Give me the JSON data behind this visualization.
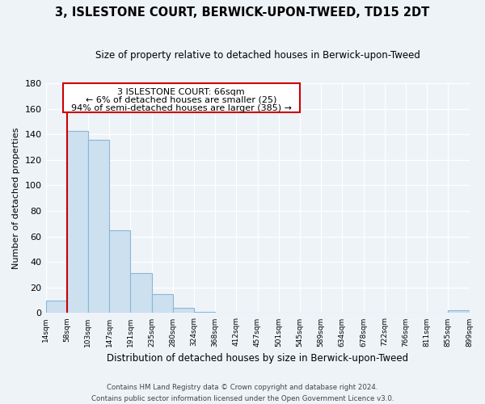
{
  "title": "3, ISLESTONE COURT, BERWICK-UPON-TWEED, TD15 2DT",
  "subtitle": "Size of property relative to detached houses in Berwick-upon-Tweed",
  "bar_values": [
    10,
    143,
    136,
    65,
    31,
    15,
    4,
    1,
    0,
    0,
    0,
    0,
    0,
    0,
    0,
    0,
    0,
    0,
    0,
    2
  ],
  "x_labels": [
    "14sqm",
    "58sqm",
    "103sqm",
    "147sqm",
    "191sqm",
    "235sqm",
    "280sqm",
    "324sqm",
    "368sqm",
    "412sqm",
    "457sqm",
    "501sqm",
    "545sqm",
    "589sqm",
    "634sqm",
    "678sqm",
    "722sqm",
    "766sqm",
    "811sqm",
    "855sqm",
    "899sqm"
  ],
  "ylabel": "Number of detached properties",
  "xlabel": "Distribution of detached houses by size in Berwick-upon-Tweed",
  "ylim": [
    0,
    180
  ],
  "yticks": [
    0,
    20,
    40,
    60,
    80,
    100,
    120,
    140,
    160,
    180
  ],
  "bar_color": "#cce0f0",
  "bar_edge_color": "#88b8d8",
  "annotation_title": "3 ISLESTONE COURT: 66sqm",
  "annotation_line1": "← 6% of detached houses are smaller (25)",
  "annotation_line2": "94% of semi-detached houses are larger (385) →",
  "footer_line1": "Contains HM Land Registry data © Crown copyright and database right 2024.",
  "footer_line2": "Contains public sector information licensed under the Open Government Licence v3.0.",
  "bg_color": "#eef3f8",
  "plot_bg_color": "#eef3f8",
  "red_line_color": "#cc0000",
  "grid_color": "#ffffff"
}
